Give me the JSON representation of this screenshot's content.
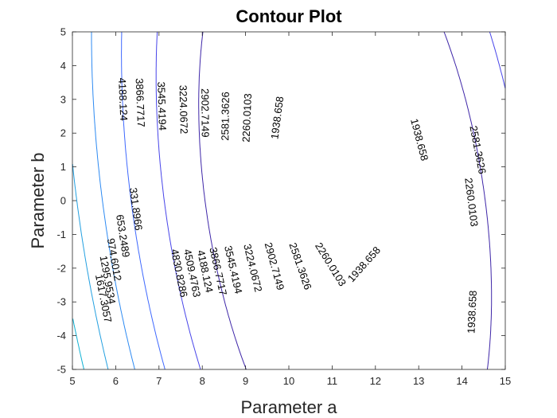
{
  "chart_data": {
    "type": "contour",
    "title": "Contour Plot",
    "xlabel": "Parameter a",
    "ylabel": "Parameter b",
    "xlim": [
      5,
      15
    ],
    "ylim": [
      -5,
      5
    ],
    "xticks": [
      "5",
      "6",
      "7",
      "8",
      "9",
      "10",
      "11",
      "12",
      "13",
      "14",
      "15"
    ],
    "yticks": [
      "-5",
      "-4",
      "-3",
      "-2",
      "-1",
      "0",
      "1",
      "2",
      "3",
      "4",
      "5"
    ],
    "grid": false,
    "colormap": "parula",
    "levels": [
      331.8966,
      653.2489,
      974.6012,
      1295.9534,
      1617.3057,
      1938.658,
      2260.0103,
      2581.3626,
      2902.7149,
      3224.0672,
      3545.4194,
      3866.7717,
      4188.124,
      4509.4763,
      4830.8286
    ],
    "level_labels": [
      "331.8966",
      "653.2489",
      "974.6012",
      "1295.9534",
      "1617.3057",
      "1938.658",
      "2260.0103",
      "2581.3626",
      "2902.7149",
      "3224.0672",
      "3545.4194",
      "3866.7717",
      "4188.124",
      "4509.4763",
      "4830.8286"
    ],
    "level_colors": [
      "#3E26A8",
      "#4744E9",
      "#3E68FE",
      "#2D8AF2",
      "#229FE0",
      "#0EB1D3",
      "#1DBDBA",
      "#3BC79A",
      "#6DCB72",
      "#A4C640",
      "#D1BB27",
      "#F0B924",
      "#FCCA3A",
      "#F5DF28",
      "#F9F314"
    ],
    "labels": [
      {
        "level": 12,
        "a": 6.15,
        "b": 3.0
      },
      {
        "level": 11,
        "a": 6.55,
        "b": 2.9
      },
      {
        "level": 10,
        "a": 7.05,
        "b": 2.8
      },
      {
        "level": 9,
        "a": 7.55,
        "b": 2.7
      },
      {
        "level": 8,
        "a": 8.05,
        "b": 2.6
      },
      {
        "level": 7,
        "a": 8.55,
        "b": 2.5
      },
      {
        "level": 6,
        "a": 9.05,
        "b": 2.45
      },
      {
        "level": 5,
        "a": 9.75,
        "b": 2.45
      },
      {
        "level": 0,
        "a": 6.45,
        "b": -0.25
      },
      {
        "level": 1,
        "a": 6.15,
        "b": -1.05
      },
      {
        "level": 2,
        "a": 5.95,
        "b": -1.75
      },
      {
        "level": 3,
        "a": 5.8,
        "b": -2.35
      },
      {
        "level": 4,
        "a": 5.7,
        "b": -2.9
      },
      {
        "level": 14,
        "a": 7.45,
        "b": -2.15
      },
      {
        "level": 13,
        "a": 7.75,
        "b": -2.15
      },
      {
        "level": 12,
        "a": 8.05,
        "b": -2.1
      },
      {
        "level": 11,
        "a": 8.35,
        "b": -2.1
      },
      {
        "level": 10,
        "a": 8.7,
        "b": -2.05
      },
      {
        "level": 9,
        "a": 9.15,
        "b": -2.0
      },
      {
        "level": 8,
        "a": 9.65,
        "b": -1.95
      },
      {
        "level": 7,
        "a": 10.25,
        "b": -1.95
      },
      {
        "level": 6,
        "a": 10.95,
        "b": -1.9
      },
      {
        "level": 5,
        "a": 11.75,
        "b": -1.9
      },
      {
        "level": 5,
        "a": 13.0,
        "b": 1.8
      },
      {
        "level": 7,
        "a": 14.35,
        "b": 1.5
      },
      {
        "level": 6,
        "a": 14.2,
        "b": -0.05
      },
      {
        "level": 5,
        "a": 14.25,
        "b": -3.3
      }
    ]
  }
}
